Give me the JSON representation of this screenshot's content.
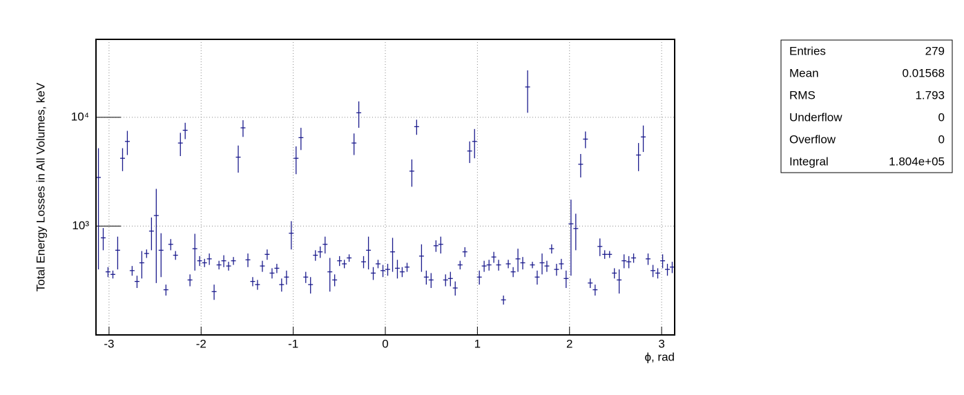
{
  "chart_data": {
    "type": "errorbar",
    "xlabel": "ϕ, rad",
    "ylabel": "Total Energy Losses in All Volumes, keV",
    "color": "#1a1a8c",
    "log_y": true,
    "grid": true,
    "xlim": [
      -3.1416,
      3.1416
    ],
    "ylim": [
      100,
      52000
    ],
    "xticks": [
      -3,
      -2,
      -1,
      0,
      1,
      2,
      3
    ],
    "yticks": [
      {
        "value": 1000,
        "label": "10³"
      },
      {
        "value": 10000,
        "label": "10⁴"
      }
    ],
    "x": [
      -3.115,
      -3.063,
      -3.011,
      -2.958,
      -2.906,
      -2.853,
      -2.801,
      -2.749,
      -2.696,
      -2.644,
      -2.592,
      -2.539,
      -2.487,
      -2.435,
      -2.382,
      -2.33,
      -2.278,
      -2.225,
      -2.173,
      -2.121,
      -2.068,
      -2.016,
      -1.963,
      -1.911,
      -1.859,
      -1.806,
      -1.754,
      -1.702,
      -1.649,
      -1.597,
      -1.545,
      -1.492,
      -1.44,
      -1.388,
      -1.335,
      -1.283,
      -1.23,
      -1.178,
      -1.126,
      -1.073,
      -1.021,
      -0.969,
      -0.916,
      -0.864,
      -0.812,
      -0.759,
      -0.707,
      -0.654,
      -0.602,
      -0.55,
      -0.497,
      -0.445,
      -0.393,
      -0.34,
      -0.288,
      -0.236,
      -0.183,
      -0.131,
      -0.079,
      -0.026,
      0.026,
      0.079,
      0.131,
      0.183,
      0.236,
      0.288,
      0.34,
      0.393,
      0.445,
      0.497,
      0.55,
      0.602,
      0.654,
      0.707,
      0.759,
      0.812,
      0.864,
      0.916,
      0.969,
      1.021,
      1.073,
      1.126,
      1.178,
      1.23,
      1.283,
      1.335,
      1.388,
      1.44,
      1.492,
      1.545,
      1.597,
      1.649,
      1.702,
      1.754,
      1.806,
      1.859,
      1.911,
      1.963,
      2.016,
      2.068,
      2.121,
      2.173,
      2.225,
      2.278,
      2.33,
      2.382,
      2.435,
      2.487,
      2.539,
      2.592,
      2.644,
      2.696,
      2.749,
      2.801,
      2.853,
      2.906,
      2.958,
      3.011,
      3.063,
      3.115
    ],
    "values": [
      2800,
      780,
      380,
      360,
      600,
      4200,
      6000,
      390,
      310,
      460,
      560,
      900,
      1250,
      600,
      260,
      680,
      540,
      5800,
      7600,
      320,
      620,
      480,
      460,
      500,
      250,
      440,
      480,
      430,
      480,
      4300,
      8000,
      490,
      310,
      290,
      430,
      550,
      370,
      410,
      290,
      340,
      860,
      4200,
      6500,
      340,
      290,
      540,
      580,
      680,
      380,
      320,
      480,
      450,
      510,
      5800,
      11000,
      470,
      600,
      370,
      450,
      390,
      400,
      580,
      410,
      380,
      420,
      3200,
      8200,
      530,
      340,
      320,
      660,
      680,
      320,
      330,
      270,
      440,
      580,
      4900,
      6000,
      340,
      430,
      440,
      520,
      440,
      210,
      450,
      380,
      500,
      460,
      19000,
      440,
      340,
      460,
      430,
      620,
      400,
      450,
      330,
      1050,
      950,
      3700,
      6300,
      300,
      260,
      650,
      550,
      550,
      370,
      320,
      480,
      470,
      510,
      4500,
      6600,
      500,
      390,
      370,
      480,
      400,
      420
    ],
    "errors": [
      2400,
      180,
      40,
      30,
      200,
      1000,
      1500,
      40,
      40,
      130,
      50,
      300,
      950,
      260,
      30,
      80,
      50,
      1400,
      1300,
      40,
      230,
      50,
      40,
      60,
      40,
      40,
      60,
      40,
      40,
      1200,
      1400,
      70,
      30,
      30,
      50,
      60,
      40,
      40,
      40,
      50,
      250,
      1200,
      1500,
      40,
      50,
      60,
      70,
      120,
      130,
      40,
      50,
      40,
      40,
      1300,
      3000,
      60,
      200,
      50,
      40,
      50,
      50,
      200,
      80,
      40,
      40,
      900,
      1300,
      150,
      50,
      50,
      80,
      120,
      40,
      50,
      40,
      40,
      60,
      1100,
      1800,
      50,
      50,
      50,
      60,
      50,
      20,
      40,
      40,
      120,
      60,
      8000,
      30,
      50,
      100,
      50,
      60,
      50,
      50,
      60,
      700,
      350,
      900,
      1100,
      30,
      30,
      120,
      50,
      40,
      40,
      80,
      70,
      60,
      50,
      1300,
      1800,
      60,
      50,
      40,
      70,
      50,
      50
    ],
    "stats": [
      {
        "label": "Entries",
        "value": "279"
      },
      {
        "label": "Mean",
        "value": "0.01568"
      },
      {
        "label": "RMS",
        "value": "1.793"
      },
      {
        "label": "Underflow",
        "value": "0"
      },
      {
        "label": "Overflow",
        "value": "0"
      },
      {
        "label": "Integral",
        "value": "1.804e+05"
      }
    ]
  }
}
